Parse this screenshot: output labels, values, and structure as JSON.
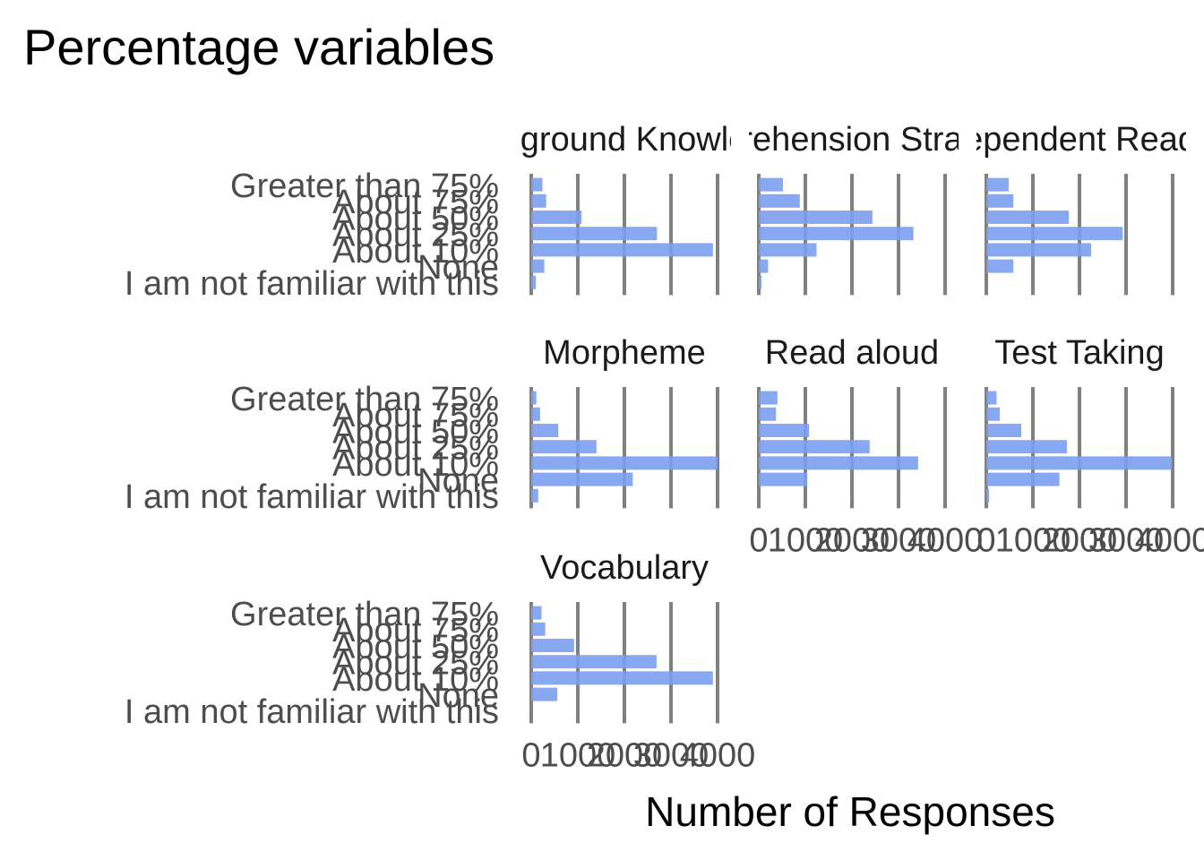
{
  "chart_data": {
    "type": "bar",
    "orientation": "horizontal",
    "title": "Percentage variables",
    "xlabel": "Number of Responses",
    "ylabel": "",
    "bar_color": "#7b9ff0",
    "categories": [
      "Greater than 75%",
      "About 75%",
      "About 50%",
      "About 25%",
      "About 10%",
      "None",
      "I am not familiar with this"
    ],
    "xlim": [
      0,
      4000
    ],
    "x_ticks": [
      "0",
      "1000",
      "2000",
      "3000",
      "4000"
    ],
    "panels": [
      {
        "name": "Background Knowledge",
        "values": [
          240,
          320,
          1080,
          2700,
          3900,
          280,
          100
        ]
      },
      {
        "name": "Comprehension Strategies",
        "values": [
          520,
          880,
          2440,
          3320,
          1240,
          200,
          60
        ]
      },
      {
        "name": "Independent Reading",
        "values": [
          480,
          580,
          1770,
          2930,
          2250,
          580,
          0
        ]
      },
      {
        "name": "Morpheme",
        "values": [
          110,
          190,
          580,
          1400,
          4000,
          2180,
          150
        ]
      },
      {
        "name": "Read aloud",
        "values": [
          400,
          370,
          1080,
          2380,
          3420,
          1040,
          0
        ]
      },
      {
        "name": "Test Taking",
        "values": [
          220,
          290,
          750,
          1730,
          3980,
          1570,
          60
        ]
      },
      {
        "name": "Vocabulary",
        "values": [
          220,
          300,
          920,
          2690,
          3900,
          560,
          0
        ]
      }
    ]
  }
}
